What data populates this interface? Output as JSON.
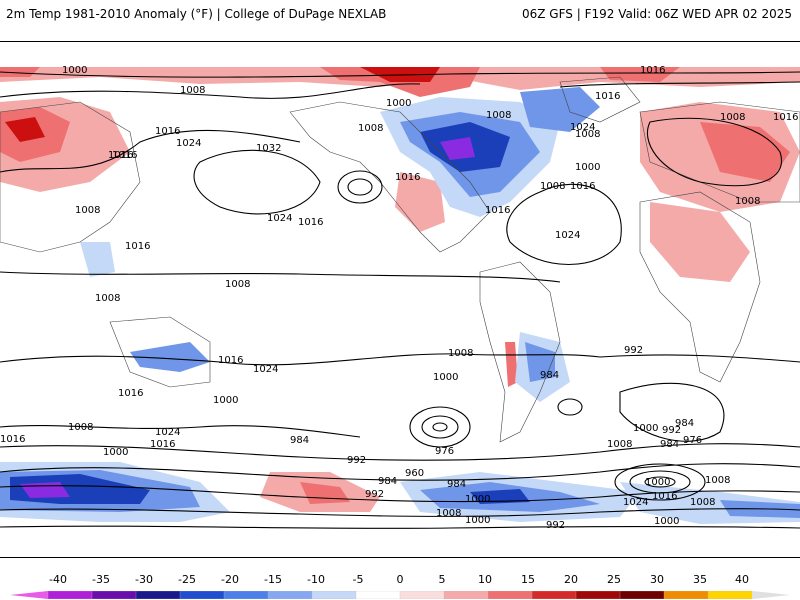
{
  "header": {
    "title_left": "2m Temp 1981-2010 Anomaly (°F) | College of DuPage NEXLAB",
    "title_right": "06Z GFS | F192 Valid: 06Z WED APR 02 2025"
  },
  "map": {
    "pressure_labels": [
      "1000",
      "1008",
      "1016",
      "1024",
      "1032",
      "1016",
      "1008",
      "1016",
      "1024",
      "1016",
      "1000",
      "1008",
      "1016",
      "1024",
      "1016",
      "1008",
      "1000",
      "1008",
      "1016",
      "1024",
      "1008",
      "1016",
      "1008",
      "1016",
      "1008",
      "1008",
      "1016",
      "1016",
      "1008",
      "1016",
      "1024",
      "1016",
      "1000",
      "1008",
      "1000",
      "984",
      "992",
      "1016",
      "1008",
      "1024",
      "1016",
      "1000",
      "984",
      "992",
      "960",
      "976",
      "984",
      "992",
      "984",
      "1000",
      "1008",
      "1000",
      "992",
      "1008",
      "984",
      "976",
      "984",
      "1000",
      "992",
      "1000",
      "1008",
      "1016",
      "1024",
      "1008",
      "1000"
    ],
    "colors": {
      "warm_light": "#f7b7b7",
      "warm_mid": "#ee6e6e",
      "warm_dark": "#cc1010",
      "cold_light": "#c4d8f7",
      "cold_mid": "#6f96e8",
      "cold_dark": "#1a3fb8",
      "cold_extreme": "#8a2be2"
    }
  },
  "colorbar": {
    "labels": [
      "-40",
      "-35",
      "-30",
      "-25",
      "-20",
      "-15",
      "-10",
      "-5",
      "0",
      "5",
      "10",
      "15",
      "20",
      "25",
      "30",
      "35",
      "40"
    ],
    "colors": [
      "#e85ae8",
      "#b020d8",
      "#6a0dad",
      "#1a1a8c",
      "#1f4fd0",
      "#4d7fe8",
      "#85a8f0",
      "#c6d8f8",
      "#ffffff",
      "#fadede",
      "#f5aaaa",
      "#ee7070",
      "#d62a2a",
      "#a00808",
      "#6e0000",
      "#f08c00",
      "#ffd500",
      "#e0e0e0"
    ]
  }
}
